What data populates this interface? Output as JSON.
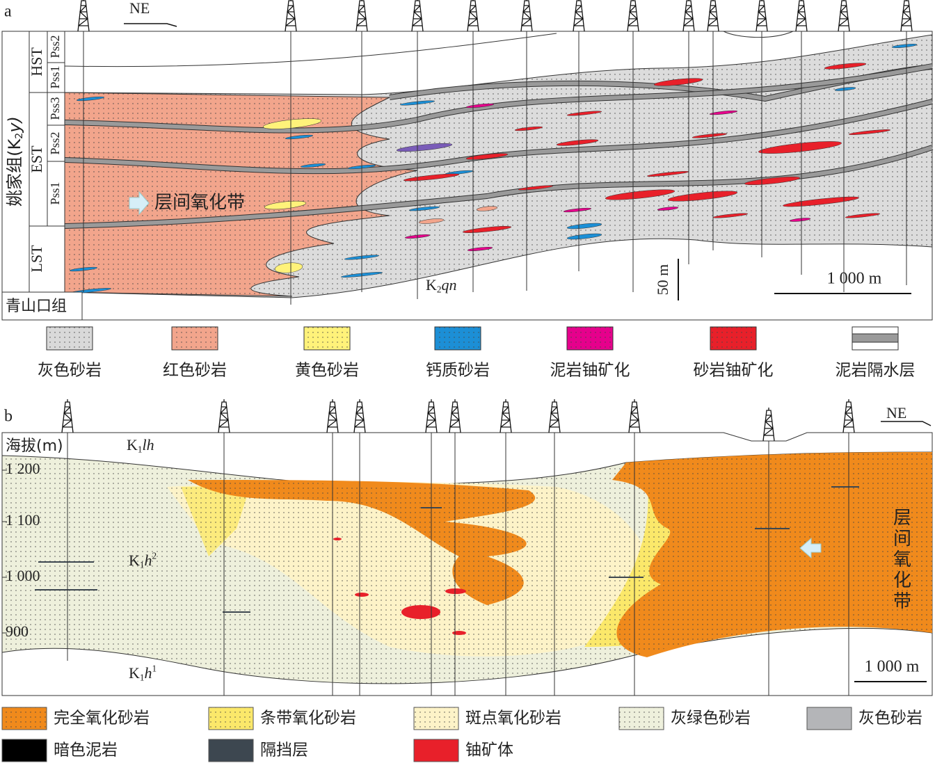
{
  "panel_a": {
    "label": "a",
    "direction": "NE",
    "formation": {
      "main": "姚家组(K",
      "sub": "2",
      "rest": "y)"
    },
    "systems_tracts": [
      "HST",
      "EST",
      "LST"
    ],
    "parasequences": [
      "Pss2",
      "Pss1",
      "Pss3",
      "Pss2",
      "Pss1"
    ],
    "lower_formation": "青山口组",
    "zone_label": "层间氧化带",
    "unit": {
      "main": "K",
      "sub": "2",
      "rest": "qn"
    },
    "vertical_scale": "50 m",
    "horizontal_scale": "1 000 m",
    "legend": [
      {
        "label": "灰色砂岩",
        "color": "#d9d9d9"
      },
      {
        "label": "红色砂岩",
        "color": "#f2a58c"
      },
      {
        "label": "黄色砂岩",
        "color": "#fff27a"
      },
      {
        "label": "钙质砂岩",
        "color": "#1c8fd6"
      },
      {
        "label": "泥岩铀矿化",
        "color": "#e6008c"
      },
      {
        "label": "砂岩铀矿化",
        "color": "#e8202a"
      },
      {
        "label": "泥岩隔水层",
        "color": "#9a9a9a"
      }
    ]
  },
  "panel_b": {
    "label": "b",
    "direction": "NE",
    "axis_title": "海拔(m)",
    "elevation_labels": [
      "1 200",
      "1 100",
      "1 000",
      "900"
    ],
    "units": [
      {
        "main": "K",
        "sub": "1",
        "rest": "lh"
      },
      {
        "main": "K",
        "sub": "1",
        "rest": "h",
        "sup": "2"
      },
      {
        "main": "K",
        "sub": "1",
        "rest": "h",
        "sup": "1"
      }
    ],
    "zone_label": "层间氧化带",
    "horizontal_scale": "1 000 m",
    "legend": [
      {
        "label": "完全氧化砂岩",
        "color": "#f08a1c"
      },
      {
        "label": "条带氧化砂岩",
        "color": "#fbe86a"
      },
      {
        "label": "斑点氧化砂岩",
        "color": "#fdf3c8"
      },
      {
        "label": "灰绿色砂岩",
        "color": "#eef0dc"
      },
      {
        "label": "灰色砂岩",
        "color": "#b4b5b8"
      },
      {
        "label": "暗色泥岩",
        "color": "#000000"
      },
      {
        "label": "隔挡层",
        "color": "#3d4750"
      },
      {
        "label": "铀矿体",
        "color": "#e8202a"
      }
    ]
  }
}
